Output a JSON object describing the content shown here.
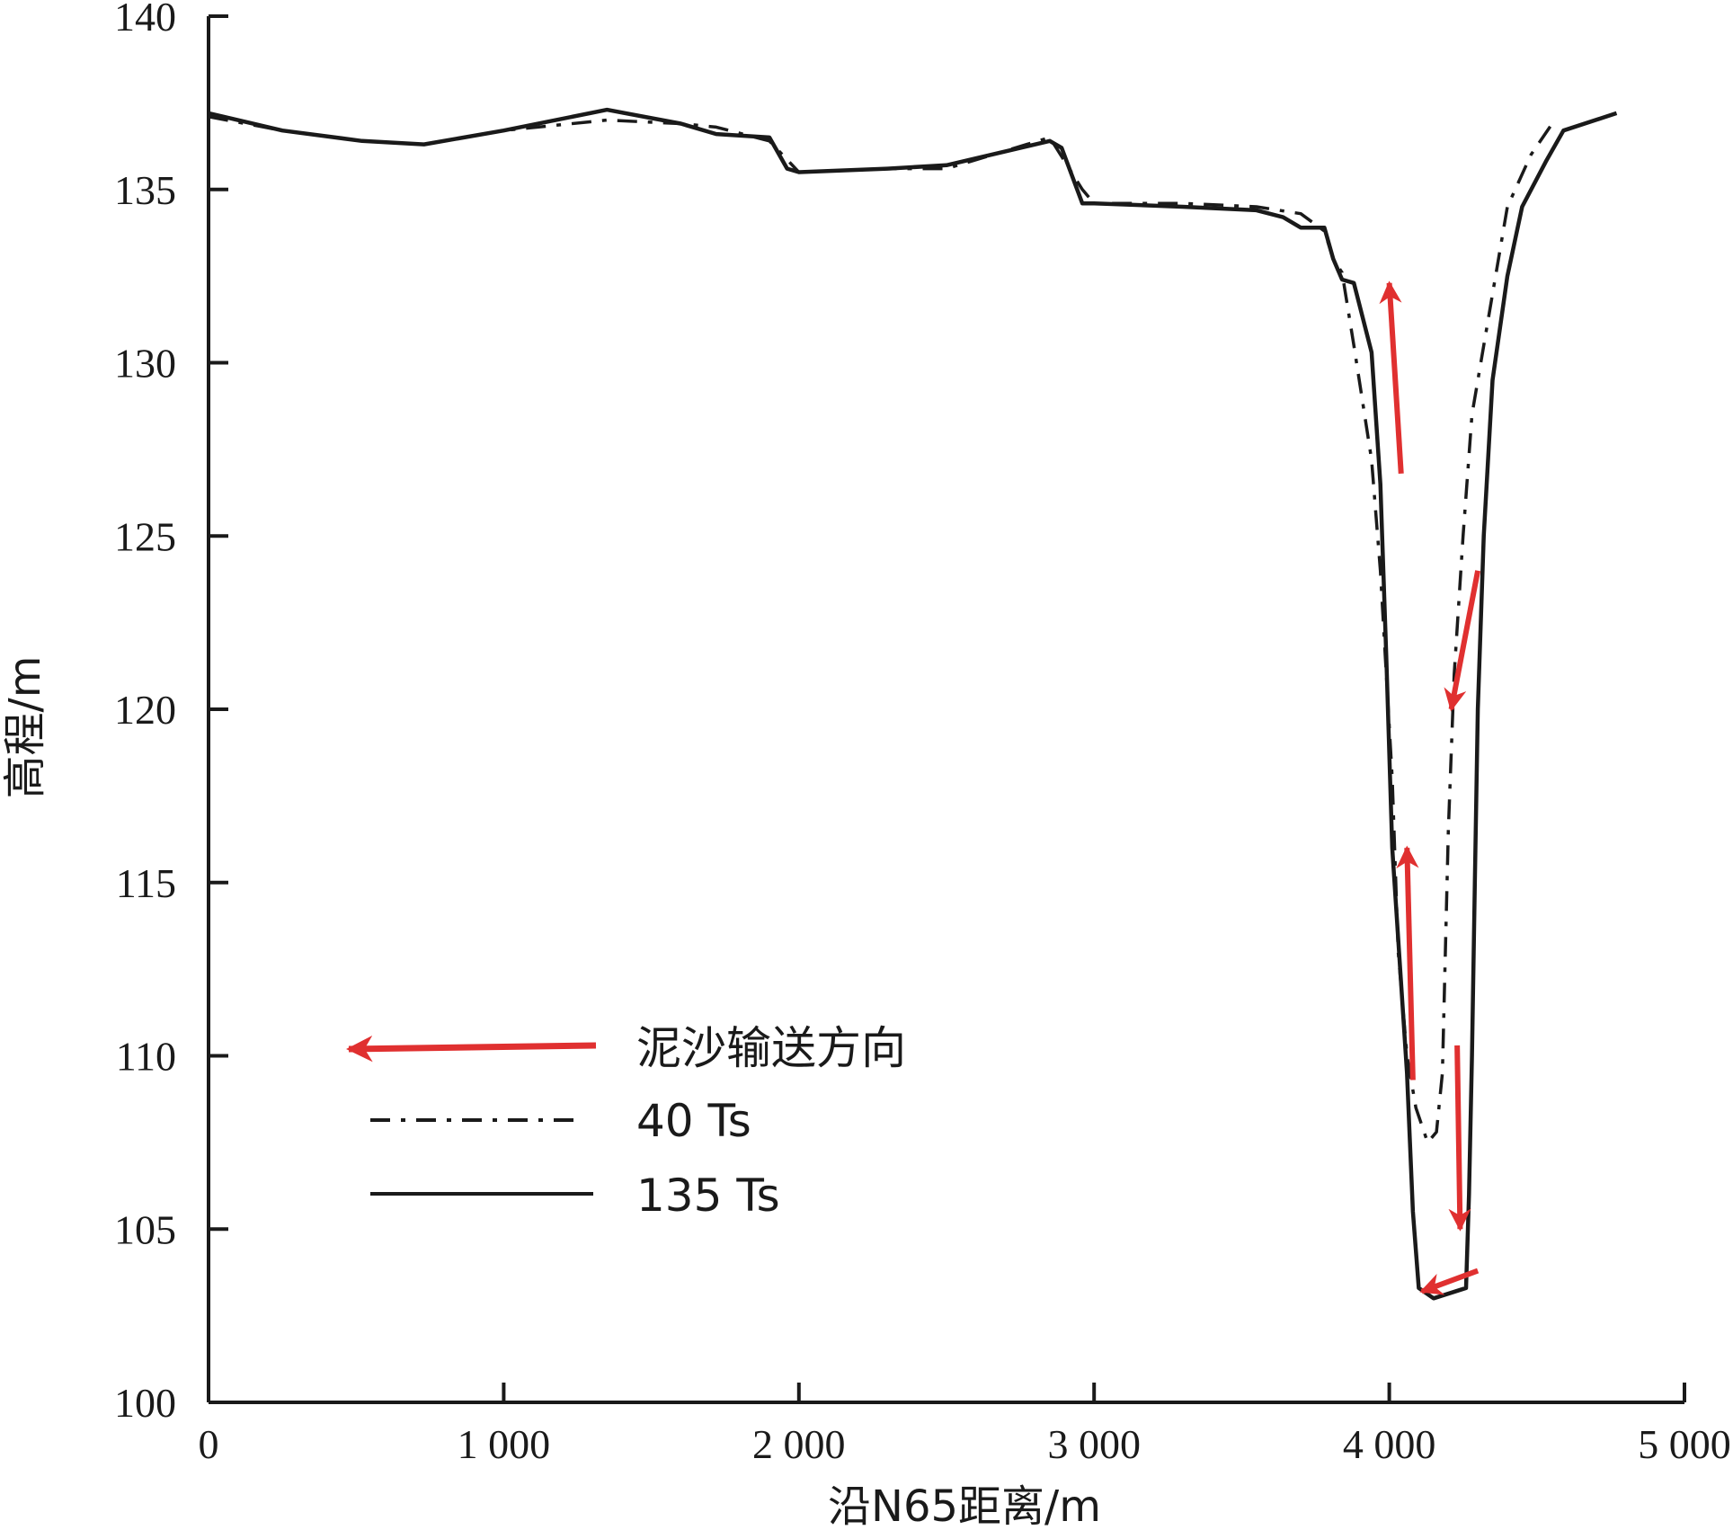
{
  "chart_data": {
    "type": "line",
    "title": "",
    "xlabel": "沿N65距离/m",
    "ylabel": "高程/m",
    "xlim": [
      0,
      5000
    ],
    "ylim": [
      100,
      140
    ],
    "x_ticks": [
      0,
      1000,
      2000,
      3000,
      4000,
      5000
    ],
    "x_tick_labels": [
      "0",
      "1 000",
      "2 000",
      "3 000",
      "4 000",
      "5 000"
    ],
    "y_ticks": [
      100,
      105,
      110,
      115,
      120,
      125,
      130,
      135,
      140
    ],
    "y_tick_labels": [
      "100",
      "105",
      "110",
      "115",
      "120",
      "125",
      "130",
      "135",
      "140"
    ],
    "grid": false,
    "legend_position": "lower-left",
    "legend": [
      {
        "label": "泥沙输送方向",
        "style": "arrow",
        "color": "#e03030"
      },
      {
        "label": "40 Ts",
        "style": "dashdot",
        "color": "#1a1a1a"
      },
      {
        "label": "135 Ts",
        "style": "solid",
        "color": "#1a1a1a"
      }
    ],
    "series": [
      {
        "name": "40 Ts",
        "style": "dashdot",
        "color": "#1a1a1a",
        "points": [
          [
            0,
            137.1
          ],
          [
            250,
            136.7
          ],
          [
            520,
            136.4
          ],
          [
            730,
            136.3
          ],
          [
            1000,
            136.7
          ],
          [
            1350,
            137.0
          ],
          [
            1600,
            136.9
          ],
          [
            1720,
            136.8
          ],
          [
            1900,
            136.4
          ],
          [
            2000,
            135.5
          ],
          [
            2300,
            135.6
          ],
          [
            2500,
            135.6
          ],
          [
            2850,
            136.5
          ],
          [
            2960,
            135.0
          ],
          [
            3000,
            134.6
          ],
          [
            3300,
            134.6
          ],
          [
            3550,
            134.5
          ],
          [
            3700,
            134.3
          ],
          [
            3780,
            133.8
          ],
          [
            3810,
            133.0
          ],
          [
            3840,
            132.6
          ],
          [
            3880,
            130.5
          ],
          [
            3940,
            127.2
          ],
          [
            3970,
            124.0
          ],
          [
            3990,
            121.0
          ],
          [
            4010,
            118.0
          ],
          [
            4030,
            113.0
          ],
          [
            4060,
            110.0
          ],
          [
            4090,
            108.5
          ],
          [
            4130,
            107.5
          ],
          [
            4160,
            107.8
          ],
          [
            4180,
            109.5
          ],
          [
            4190,
            113.0
          ],
          [
            4200,
            116.5
          ],
          [
            4220,
            121.0
          ],
          [
            4250,
            125.0
          ],
          [
            4280,
            128.5
          ],
          [
            4330,
            131.0
          ],
          [
            4400,
            134.5
          ],
          [
            4480,
            136.0
          ],
          [
            4560,
            137.0
          ]
        ]
      },
      {
        "name": "135 Ts",
        "style": "solid",
        "color": "#1a1a1a",
        "points": [
          [
            0,
            137.2
          ],
          [
            250,
            136.7
          ],
          [
            520,
            136.4
          ],
          [
            730,
            136.3
          ],
          [
            1000,
            136.7
          ],
          [
            1350,
            137.3
          ],
          [
            1600,
            136.9
          ],
          [
            1720,
            136.6
          ],
          [
            1900,
            136.5
          ],
          [
            1960,
            135.6
          ],
          [
            2000,
            135.5
          ],
          [
            2300,
            135.6
          ],
          [
            2500,
            135.7
          ],
          [
            2850,
            136.4
          ],
          [
            2890,
            136.2
          ],
          [
            2960,
            134.6
          ],
          [
            3000,
            134.6
          ],
          [
            3300,
            134.5
          ],
          [
            3550,
            134.4
          ],
          [
            3640,
            134.2
          ],
          [
            3700,
            133.9
          ],
          [
            3780,
            133.9
          ],
          [
            3810,
            133.0
          ],
          [
            3840,
            132.4
          ],
          [
            3880,
            132.3
          ],
          [
            3940,
            130.3
          ],
          [
            3970,
            126.5
          ],
          [
            3990,
            121.5
          ],
          [
            4010,
            116.0
          ],
          [
            4060,
            109.5
          ],
          [
            4080,
            105.5
          ],
          [
            4100,
            103.3
          ],
          [
            4150,
            103.0
          ],
          [
            4260,
            103.3
          ],
          [
            4270,
            106.0
          ],
          [
            4280,
            110.0
          ],
          [
            4290,
            115.0
          ],
          [
            4300,
            120.0
          ],
          [
            4320,
            125.0
          ],
          [
            4350,
            129.5
          ],
          [
            4400,
            132.5
          ],
          [
            4450,
            134.5
          ],
          [
            4530,
            135.8
          ],
          [
            4590,
            136.7
          ],
          [
            4770,
            137.2
          ]
        ]
      }
    ],
    "arrows": [
      {
        "from": [
          4040,
          126.8
        ],
        "to": [
          4000,
          132.3
        ]
      },
      {
        "from": [
          4300,
          124.0
        ],
        "to": [
          4210,
          120.0
        ]
      },
      {
        "from": [
          4080,
          109.3
        ],
        "to": [
          4060,
          116.0
        ]
      },
      {
        "from": [
          4230,
          110.3
        ],
        "to": [
          4240,
          105.0
        ]
      },
      {
        "from": [
          4300,
          103.8
        ],
        "to": [
          4110,
          103.2
        ]
      }
    ]
  }
}
